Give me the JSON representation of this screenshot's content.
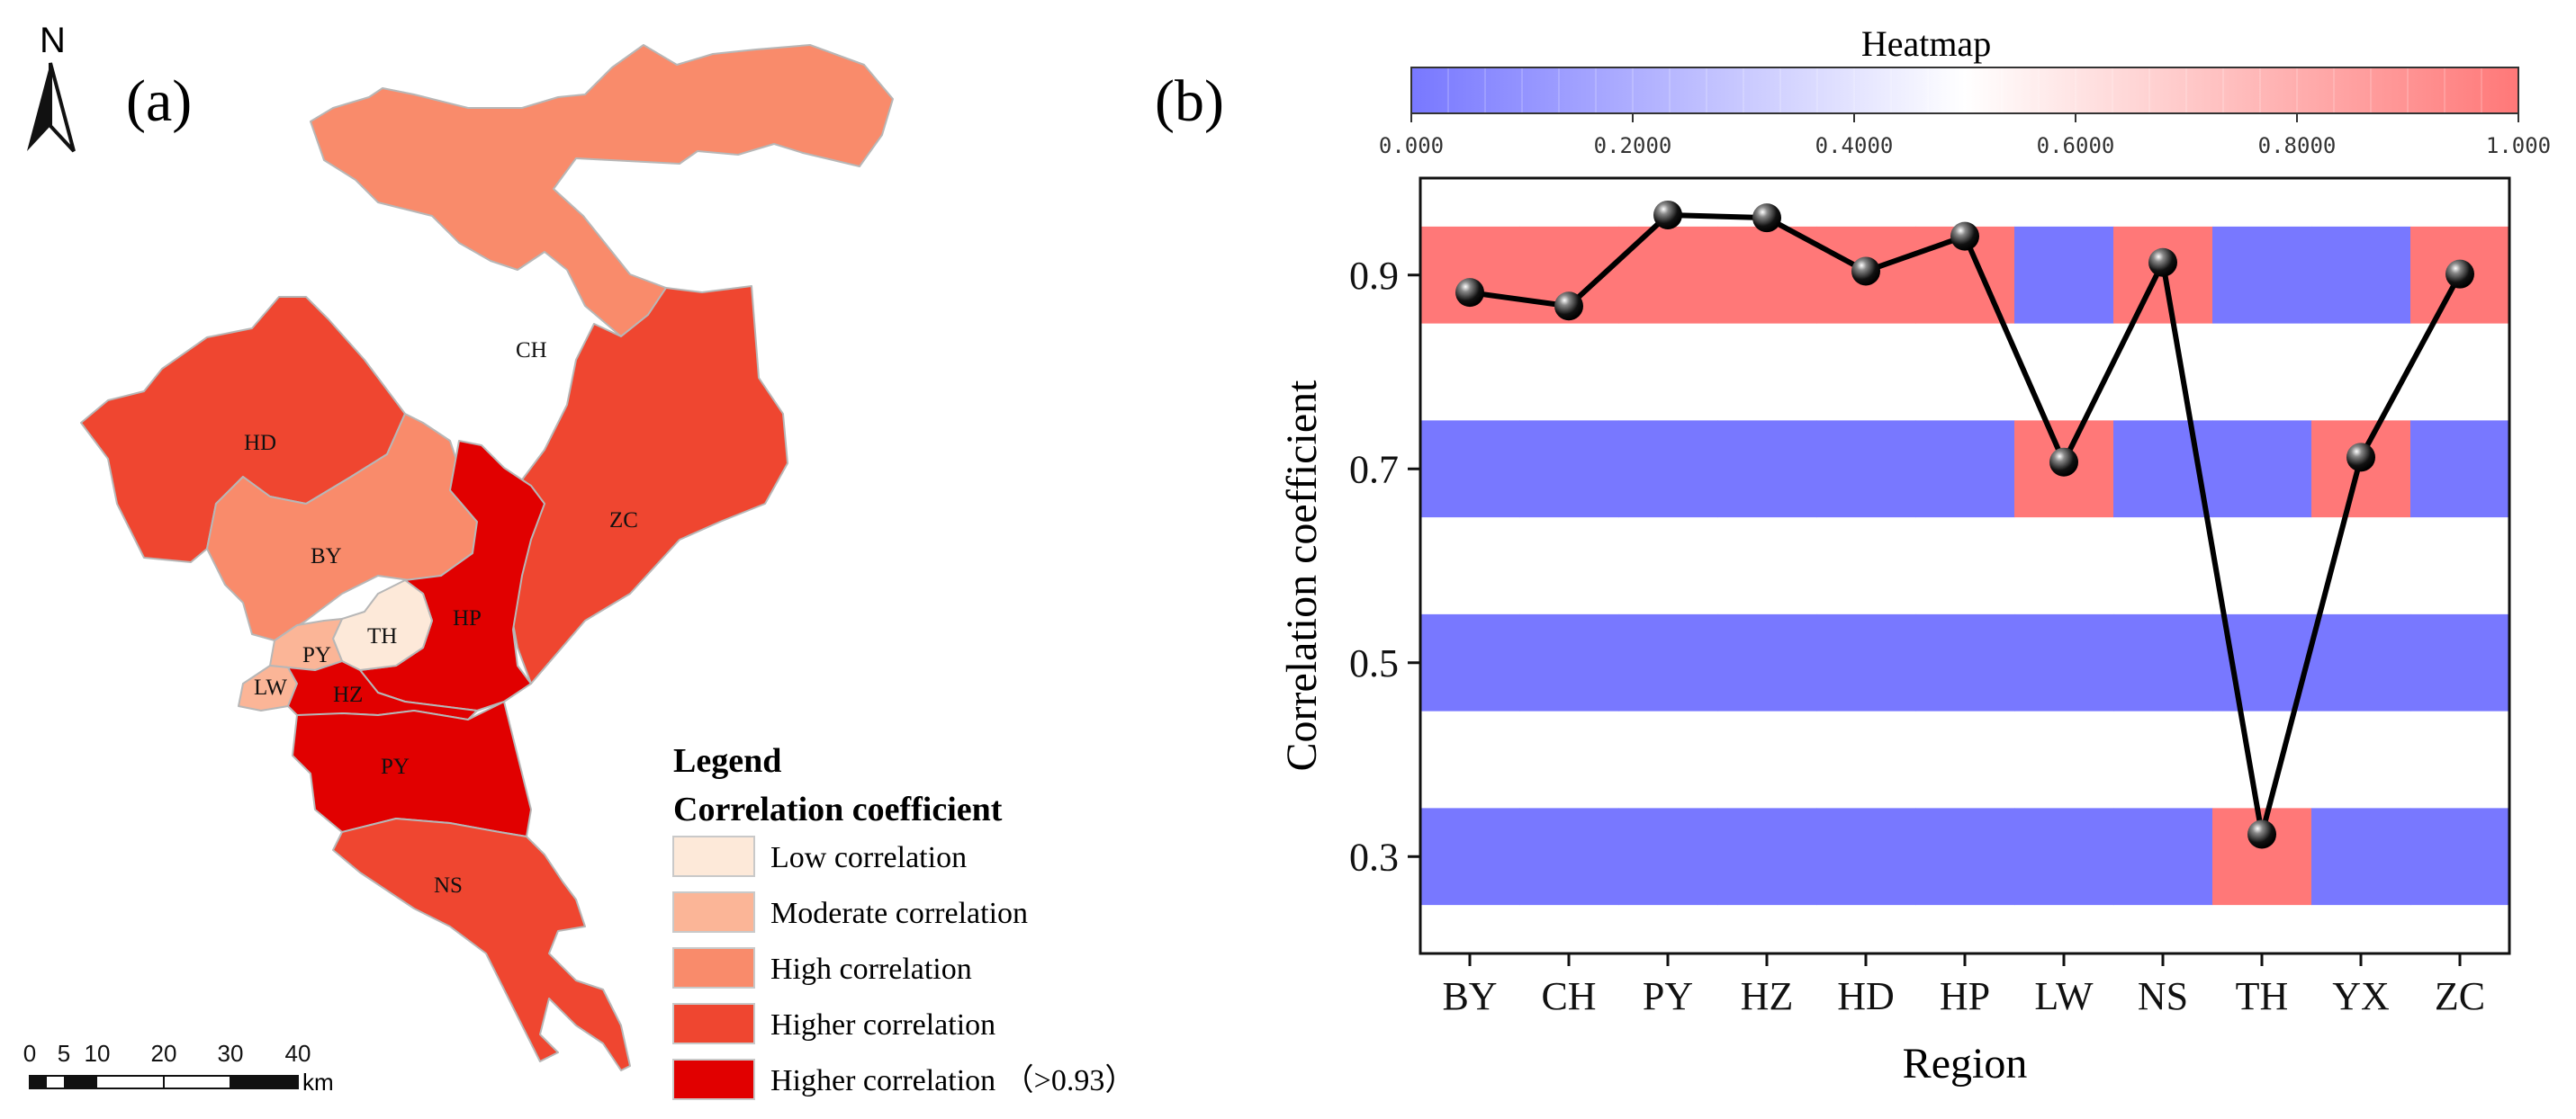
{
  "panel_a": {
    "label": "(a)",
    "north": "N",
    "districts": [
      {
        "code": "CH",
        "fill": "#f98b6b"
      },
      {
        "code": "ZC",
        "fill": "#ef4630"
      },
      {
        "code": "HD",
        "fill": "#ef4630"
      },
      {
        "code": "BY",
        "fill": "#f98b6b"
      },
      {
        "code": "HP",
        "fill": "#e10000"
      },
      {
        "code": "TH",
        "fill": "#fde9d9"
      },
      {
        "code": "PY",
        "fill": "#fbb597"
      },
      {
        "code": "LW",
        "fill": "#fbb597"
      },
      {
        "code": "HZ",
        "fill": "#e10000"
      },
      {
        "code": "PY",
        "fill": "#e10000"
      },
      {
        "code": "NS",
        "fill": "#ef4630"
      }
    ],
    "legend": {
      "title": "Legend",
      "subtitle": "Correlation coefficient",
      "items": [
        {
          "label": "Low correlation",
          "color": "#fde9d9"
        },
        {
          "label": "Moderate correlation",
          "color": "#fbb597"
        },
        {
          "label": "High correlation",
          "color": "#f98b6b"
        },
        {
          "label": "Higher correlation",
          "color": "#ef4630"
        },
        {
          "label": "Higher correlation （>0.93）",
          "color": "#e10000"
        }
      ]
    },
    "scale_bar": {
      "ticks": [
        "0",
        "5",
        "10",
        "20",
        "30",
        "40"
      ],
      "unit": "km"
    }
  },
  "panel_b": {
    "label": "(b)",
    "colorbar": {
      "title": "Heatmap",
      "ticks": [
        "0.000",
        "0.2000",
        "0.4000",
        "0.6000",
        "0.8000",
        "1.000"
      ],
      "low_color": "#7878ff",
      "mid_color": "#ffffff",
      "high_color": "#ff7878"
    }
  },
  "chart_data": {
    "type": "line",
    "title": "",
    "xlabel": "Region",
    "ylabel": "Correlation coefficient",
    "categories": [
      "BY",
      "CH",
      "PY",
      "HZ",
      "HD",
      "HP",
      "LW",
      "NS",
      "TH",
      "YX",
      "ZC"
    ],
    "series": [
      {
        "name": "Correlation coefficient",
        "values": [
          0.882,
          0.868,
          0.962,
          0.959,
          0.904,
          0.94,
          0.707,
          0.913,
          0.323,
          0.712,
          0.901
        ]
      }
    ],
    "ylim": [
      0.2,
      1.0
    ],
    "yticks": [
      0.3,
      0.5,
      0.7,
      0.9
    ],
    "ytick_labels": [
      "0.3",
      "0.5",
      "0.7",
      "0.9"
    ],
    "band_levels": [
      0.9,
      0.7,
      0.5,
      0.3
    ],
    "band_half_height": 0.05,
    "heat_colors": {
      "high": "#ff7878",
      "low": "#7878ff"
    }
  }
}
